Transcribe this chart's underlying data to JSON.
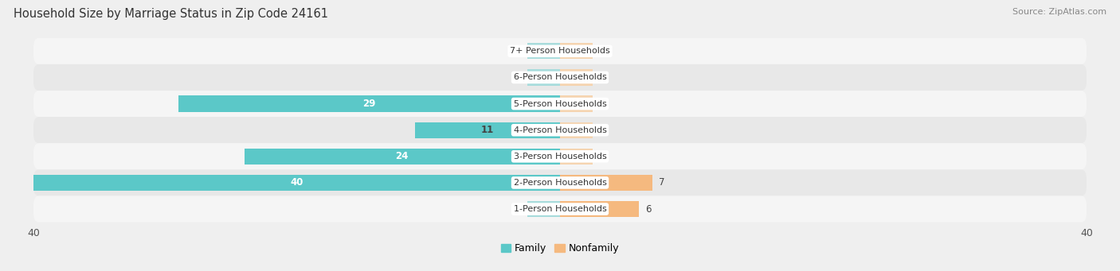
{
  "title": "Household Size by Marriage Status in Zip Code 24161",
  "source": "Source: ZipAtlas.com",
  "categories": [
    "7+ Person Households",
    "6-Person Households",
    "5-Person Households",
    "4-Person Households",
    "3-Person Households",
    "2-Person Households",
    "1-Person Households"
  ],
  "family_values": [
    0,
    0,
    29,
    11,
    24,
    40,
    0
  ],
  "nonfamily_values": [
    0,
    0,
    0,
    0,
    0,
    7,
    6
  ],
  "family_color": "#5BC8C8",
  "nonfamily_color": "#F5B97F",
  "nonfamily_zero_color": "#F5D4B0",
  "xlim_abs": 40,
  "bar_height": 0.72,
  "bg_color": "#EFEFEF",
  "row_bg_light": "#F5F5F5",
  "row_bg_dark": "#E8E8E8",
  "label_bg_color": "#FFFFFF",
  "title_fontsize": 10.5,
  "source_fontsize": 8,
  "tick_fontsize": 9,
  "legend_fontsize": 9,
  "value_fontsize": 8.5,
  "min_bar_display": 2.5
}
